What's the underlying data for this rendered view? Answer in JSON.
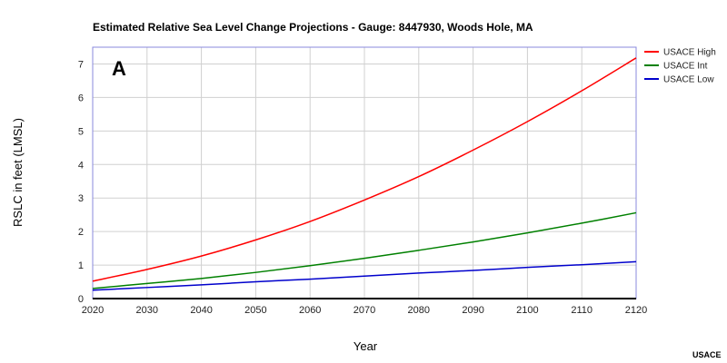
{
  "chart_data": {
    "type": "line",
    "title": "Estimated Relative Sea Level Change Projections - Gauge: 8447930, Woods Hole, MA",
    "panel_label": "A",
    "xlabel": "Year",
    "ylabel": "RSLC in feet (LMSL)",
    "credit": "USACE",
    "xlim": [
      2020,
      2120
    ],
    "ylim": [
      0,
      7.5
    ],
    "x_ticks": [
      "2020",
      "2030",
      "2040",
      "2050",
      "2060",
      "2070",
      "2080",
      "2090",
      "2100",
      "2110",
      "2120"
    ],
    "y_ticks": [
      "0",
      "1",
      "2",
      "3",
      "4",
      "5",
      "6",
      "7"
    ],
    "grid": true,
    "legend_position": "top-right",
    "x": [
      2020,
      2030,
      2040,
      2050,
      2060,
      2070,
      2080,
      2090,
      2100,
      2110,
      2120
    ],
    "series": [
      {
        "name": "USACE High",
        "color": "#ff0000",
        "values": [
          0.52,
          0.87,
          1.27,
          1.75,
          2.3,
          2.94,
          3.64,
          4.43,
          5.28,
          6.2,
          7.18
        ]
      },
      {
        "name": "USACE Int",
        "color": "#008000",
        "values": [
          0.3,
          0.45,
          0.6,
          0.78,
          0.98,
          1.2,
          1.44,
          1.69,
          1.96,
          2.25,
          2.56
        ]
      },
      {
        "name": "USACE Low",
        "color": "#0000cc",
        "values": [
          0.25,
          0.33,
          0.41,
          0.5,
          0.58,
          0.67,
          0.76,
          0.84,
          0.93,
          1.01,
          1.1
        ]
      }
    ]
  }
}
